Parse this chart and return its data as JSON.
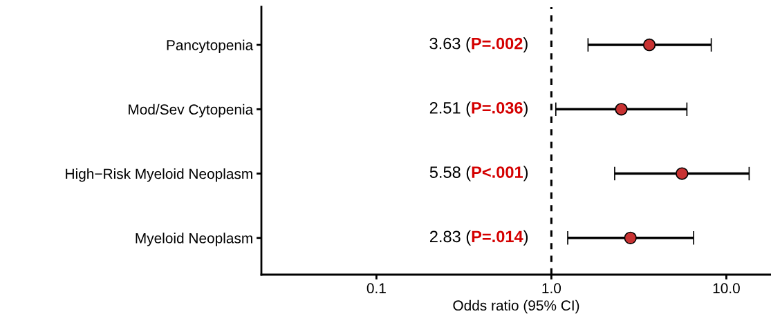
{
  "chart_data": {
    "type": "scatter",
    "orientation": "horizontal",
    "categories": [
      "Pancytopenia",
      "Mod/Sev Cytopenia",
      "High−Risk Myeloid Neoplasm",
      "Myeloid Neoplasm"
    ],
    "values": [
      3.63,
      2.51,
      5.58,
      2.83
    ],
    "errors": [
      [
        1.62,
        8.2
      ],
      [
        1.06,
        5.95
      ],
      [
        2.3,
        13.5
      ],
      [
        1.24,
        6.5
      ]
    ],
    "annotations": [
      "3.63 (P=.002)",
      "2.51 (P=.036)",
      "5.58 (P<.001)",
      "2.83 (P=.014)"
    ],
    "color": "#c83232",
    "marker": "circle",
    "xlabel": "Odds ratio (95% CI)",
    "log": "x",
    "xlim": [
      0.022,
      18
    ],
    "xticks": [
      {
        "value": 0.1,
        "label": "0.1"
      },
      {
        "value": 1,
        "label": "1.0"
      },
      {
        "value": 10,
        "label": "10.0"
      }
    ],
    "ref_lines": [
      {
        "axis": "x",
        "value": 1,
        "line_style": "dashed",
        "color": "#000000"
      }
    ],
    "grid": false,
    "legend": false
  }
}
